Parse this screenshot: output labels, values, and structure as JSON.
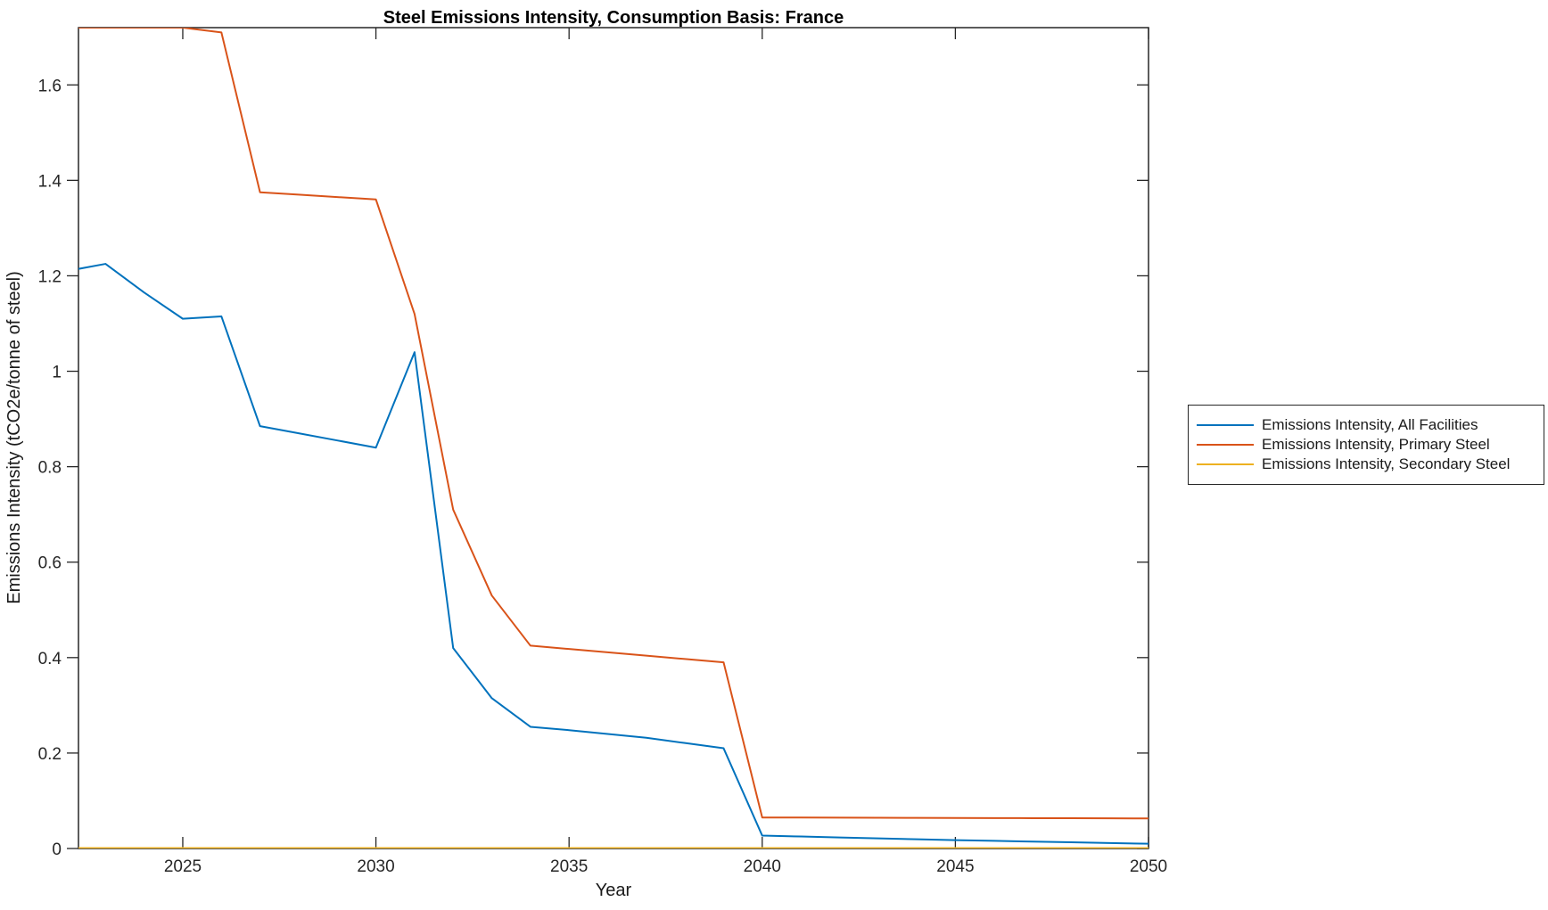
{
  "chart_data": {
    "type": "line",
    "title": "Steel Emissions Intensity, Consumption Basis: France",
    "xlabel": "Year",
    "ylabel": "Emissions Intensity (tCO2e/tonne of steel)",
    "xlim": [
      2022.3,
      2050
    ],
    "ylim": [
      0,
      1.72
    ],
    "xticks": [
      2025,
      2030,
      2035,
      2040,
      2045,
      2050
    ],
    "yticks": [
      0,
      0.2,
      0.4,
      0.6,
      0.8,
      1,
      1.2,
      1.4,
      1.6
    ],
    "grid": false,
    "legend_position": "outside-right",
    "axis_color": "#262626",
    "background_color": "#ffffff",
    "x": [
      2022,
      2023,
      2024,
      2025,
      2026,
      2027,
      2028,
      2029,
      2030,
      2031,
      2032,
      2033,
      2034,
      2035,
      2036,
      2037,
      2038,
      2039,
      2040,
      2041,
      2042,
      2043,
      2044,
      2045,
      2046,
      2047,
      2048,
      2049,
      2050
    ],
    "series": [
      {
        "name": "Emissions Intensity, All Facilities",
        "color": "#0072BD",
        "values": [
          1.21,
          1.225,
          1.165,
          1.11,
          1.115,
          0.885,
          0.87,
          0.855,
          0.84,
          1.04,
          0.42,
          0.315,
          0.255,
          0.248,
          0.24,
          0.232,
          0.221,
          0.21,
          0.027,
          0.0251,
          0.0232,
          0.0213,
          0.0194,
          0.0175,
          0.016,
          0.0145,
          0.013,
          0.0115,
          0.01
        ]
      },
      {
        "name": "Emissions Intensity, Primary Steel",
        "color": "#D95319",
        "values": [
          1.72,
          1.72,
          1.72,
          1.72,
          1.71,
          1.375,
          1.37,
          1.365,
          1.36,
          1.12,
          0.71,
          0.53,
          0.425,
          0.418,
          0.411,
          0.404,
          0.397,
          0.39,
          0.065,
          0.0648,
          0.0646,
          0.0644,
          0.0642,
          0.064,
          0.0638,
          0.0636,
          0.0634,
          0.0632,
          0.063
        ]
      },
      {
        "name": "Emissions Intensity, Secondary Steel",
        "color": "#EDB120",
        "values": [
          0.001,
          0.001,
          0.001,
          0.001,
          0.001,
          0.001,
          0.001,
          0.001,
          0.001,
          0.001,
          0.001,
          0.001,
          0.001,
          0.001,
          0.001,
          0.001,
          0.001,
          0.001,
          0.001,
          0.001,
          0.001,
          0.001,
          0.001,
          0.001,
          0.001,
          0.001,
          0.001,
          0.001,
          0.001
        ]
      }
    ]
  }
}
